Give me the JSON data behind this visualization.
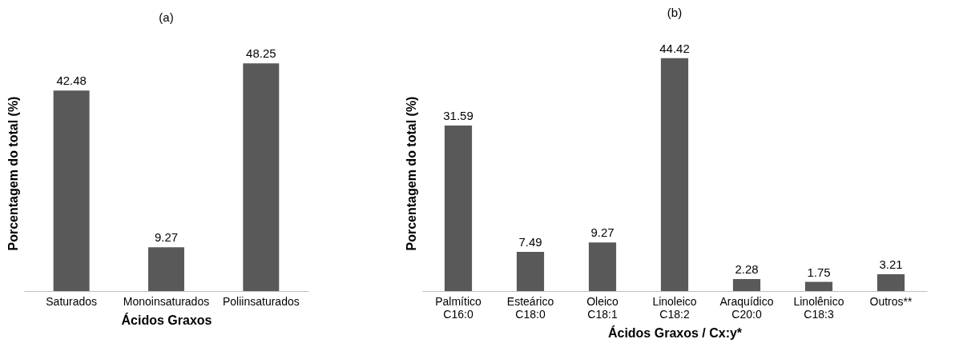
{
  "chart_data": [
    {
      "type": "bar",
      "title": "(a)",
      "xlabel": "Ácidos Graxos",
      "ylabel": "Porcentagem do total (%)",
      "categories": [
        "Saturados",
        "Monoinsaturados",
        "Poliinsaturados"
      ],
      "values": [
        42.48,
        9.27,
        48.25
      ],
      "color": "#595959",
      "data_labels": true
    },
    {
      "type": "bar",
      "title": "(b)",
      "xlabel": "Ácidos Graxos / Cx:y*",
      "ylabel": "Porcentagem do total  (%)",
      "categories": [
        "Palmítico\nC16:0",
        "Esteárico\nC18:0",
        "Oleico\nC18:1",
        "Linoleico\nC18:2",
        "Araquídico\nC20:0",
        "Linolênico\nC18:3",
        "Outros**"
      ],
      "values": [
        31.59,
        7.49,
        9.27,
        44.42,
        2.28,
        1.75,
        3.21
      ],
      "color": "#595959",
      "data_labels": true
    }
  ]
}
